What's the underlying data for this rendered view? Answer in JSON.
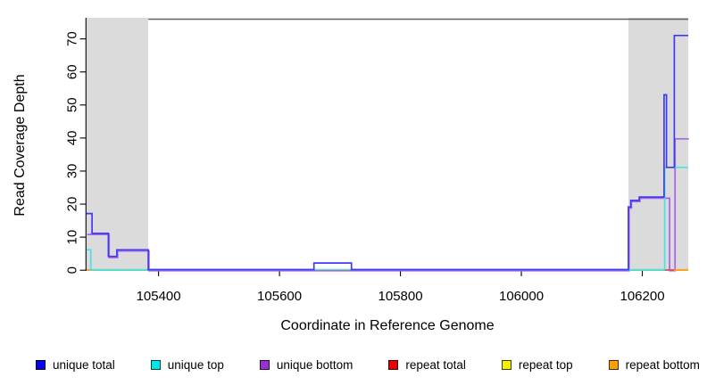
{
  "chart_data": {
    "type": "line",
    "subtype": "step-coverage",
    "title": "",
    "xlabel": "Coordinate in Reference Genome",
    "ylabel": "Read Coverage Depth",
    "xlim": [
      105281,
      106276
    ],
    "ylim": [
      0,
      76
    ],
    "x_ticks": [
      105400,
      105600,
      105800,
      106000,
      106200
    ],
    "y_ticks": [
      0,
      10,
      20,
      30,
      40,
      50,
      60,
      70
    ],
    "grid": false,
    "legend_position": "bottom",
    "highlight_regions": [
      {
        "name": "left-shaded-region",
        "x0": 105281,
        "x1": 105383,
        "color": "#dbdbdb"
      },
      {
        "name": "right-shaded-region",
        "x0": 106177,
        "x1": 106276,
        "color": "#dbdbdb"
      }
    ],
    "top_annotation": {
      "x0": 105383,
      "x1": 106276,
      "color": "#606060"
    },
    "baseline": {
      "name": "zero-baseline",
      "color": "#85ca85",
      "x0": 105281,
      "x1": 106276,
      "y": 0
    },
    "series": [
      {
        "name": "unique total",
        "color": "#3c3cf2",
        "steps": [
          [
            105281,
            17
          ],
          [
            105290,
            11
          ],
          [
            105317,
            4
          ],
          [
            105331,
            6
          ],
          [
            105383,
            0
          ],
          [
            105657,
            2
          ],
          [
            105719,
            0
          ],
          [
            106177,
            19
          ],
          [
            106181,
            21
          ],
          [
            106195,
            22
          ],
          [
            106236,
            53
          ],
          [
            106240,
            31
          ],
          [
            106253,
            71
          ]
        ]
      },
      {
        "name": "unique top",
        "color": "#45e2e6",
        "steps": [
          [
            105281,
            6
          ],
          [
            105288,
            0
          ],
          [
            106237,
            31
          ]
        ]
      },
      {
        "name": "unique bottom",
        "color": "#a863e8",
        "steps": [
          [
            105281,
            11
          ],
          [
            105317,
            4
          ],
          [
            105331,
            6
          ],
          [
            105383,
            0
          ],
          [
            106177,
            19
          ],
          [
            106181,
            21
          ],
          [
            106195,
            22
          ],
          [
            106244,
            0
          ],
          [
            106253,
            40
          ]
        ]
      },
      {
        "name": "repeat total",
        "color": "#e84060",
        "zero_segments": [
          [
            105657,
            105719
          ],
          [
            106236,
            106253
          ]
        ]
      },
      {
        "name": "repeat top",
        "color": "#f0f000",
        "zero_segments": []
      },
      {
        "name": "repeat bottom",
        "color": "#ffa226",
        "zero_segments": [
          [
            105281,
            105290
          ],
          [
            106253,
            106276
          ]
        ]
      }
    ]
  },
  "legend": {
    "items": [
      {
        "label": "unique total",
        "color": "#0505e8"
      },
      {
        "label": "unique top",
        "color": "#00e6e6"
      },
      {
        "label": "unique bottom",
        "color": "#9a30d0"
      },
      {
        "label": "repeat total",
        "color": "#e60000"
      },
      {
        "label": "repeat top",
        "color": "#f0f000"
      },
      {
        "label": "repeat bottom",
        "color": "#ffa000"
      }
    ]
  }
}
